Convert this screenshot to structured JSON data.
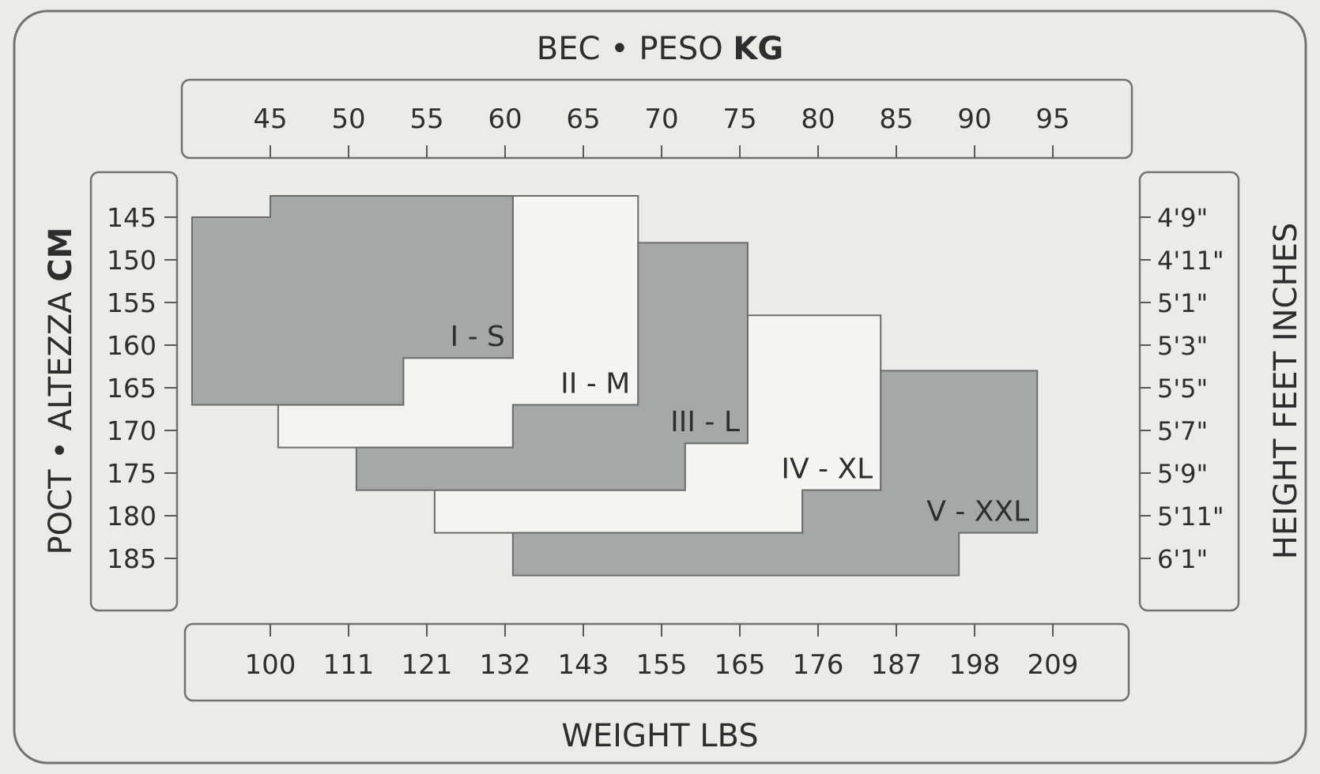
{
  "chart_data": {
    "type": "table",
    "title": {
      "prefix": "ВЕС • PESO ",
      "bold": "KG"
    },
    "left_axis_title": {
      "prefix": "РОСТ • ALTEZZA ",
      "bold": "CM"
    },
    "right_axis_title": "HEIGHT FEET INCHES",
    "bottom_axis_title": "WEIGHT LBS",
    "weight_kg_ticks": [
      "45",
      "50",
      "55",
      "60",
      "65",
      "70",
      "75",
      "80",
      "85",
      "90",
      "95"
    ],
    "weight_lbs_ticks": [
      "100",
      "111",
      "121",
      "132",
      "143",
      "155",
      "165",
      "176",
      "187",
      "198",
      "209"
    ],
    "height_cm_ticks": [
      "145",
      "150",
      "155",
      "160",
      "165",
      "170",
      "175",
      "180",
      "185"
    ],
    "height_ft_ticks": [
      "4'9\"",
      "4'11\"",
      "5'1\"",
      "5'3\"",
      "5'5\"",
      "5'7\"",
      "5'9\"",
      "5'11\"",
      "6'1\""
    ],
    "sizes": [
      {
        "label": "I - S",
        "shaded": true,
        "outline_kg_cm": [
          [
            45,
            142.5
          ],
          [
            60.5,
            142.5
          ],
          [
            60.5,
            161.5
          ],
          [
            53.5,
            161.5
          ],
          [
            53.5,
            167
          ],
          [
            40,
            167
          ],
          [
            40,
            145
          ],
          [
            45,
            145
          ]
        ]
      },
      {
        "label": "II - M",
        "shaded": false,
        "outline_kg_cm": [
          [
            60.5,
            142.5
          ],
          [
            68.5,
            142.5
          ],
          [
            68.5,
            167
          ],
          [
            60.5,
            167
          ],
          [
            60.5,
            172
          ],
          [
            45.5,
            172
          ],
          [
            45.5,
            167
          ],
          [
            53.5,
            167
          ],
          [
            53.5,
            161.5
          ],
          [
            60.5,
            161.5
          ]
        ]
      },
      {
        "label": "III - L",
        "shaded": true,
        "outline_kg_cm": [
          [
            68.5,
            148
          ],
          [
            75.5,
            148
          ],
          [
            75.5,
            171.5
          ],
          [
            71.5,
            171.5
          ],
          [
            71.5,
            177
          ],
          [
            50.5,
            177
          ],
          [
            50.5,
            172
          ],
          [
            60.5,
            172
          ],
          [
            60.5,
            167
          ],
          [
            68.5,
            167
          ]
        ]
      },
      {
        "label": "IV - XL",
        "shaded": false,
        "outline_kg_cm": [
          [
            75.5,
            156.5
          ],
          [
            84,
            156.5
          ],
          [
            84,
            177
          ],
          [
            79,
            177
          ],
          [
            79,
            182
          ],
          [
            55.5,
            182
          ],
          [
            55.5,
            177
          ],
          [
            71.5,
            177
          ],
          [
            71.5,
            171.5
          ],
          [
            75.5,
            171.5
          ]
        ]
      },
      {
        "label": "V - XXL",
        "shaded": true,
        "outline_kg_cm": [
          [
            84,
            163
          ],
          [
            94,
            163
          ],
          [
            94,
            182
          ],
          [
            89,
            182
          ],
          [
            89,
            187
          ],
          [
            60.5,
            187
          ],
          [
            60.5,
            182
          ],
          [
            79,
            182
          ],
          [
            79,
            177
          ],
          [
            84,
            177
          ]
        ]
      }
    ],
    "colors": {
      "shaded": "#a4a9a8",
      "unshaded": "#f4f4f1",
      "frame": "#727272",
      "text": "#2e2e2e",
      "background": "#ebebe7"
    }
  }
}
